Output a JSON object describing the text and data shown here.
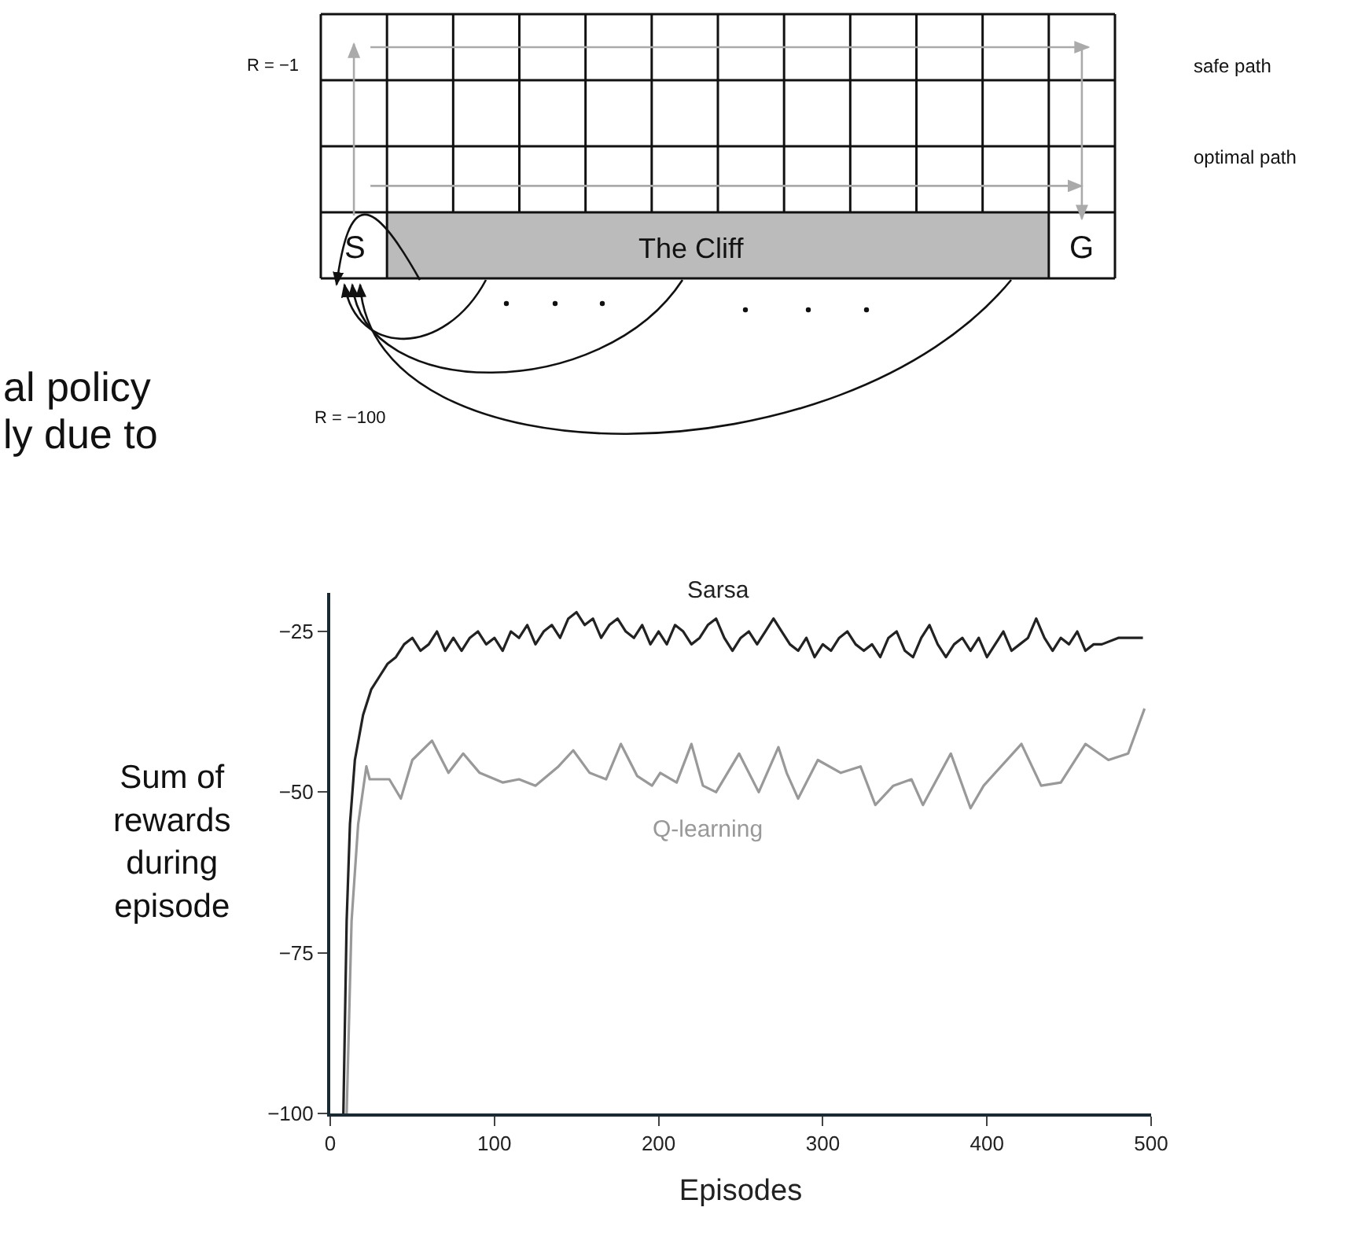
{
  "chart_data": {
    "type": "line",
    "xlabel": "Episodes",
    "ylabel": "Sum of\nrewards\nduring\nepisode",
    "xlim": [
      0,
      500
    ],
    "xticks": [
      0,
      100,
      200,
      300,
      400,
      500
    ],
    "ylim": [
      -100,
      -19
    ],
    "yticks": [
      {
        "value": -100,
        "label": "−100"
      },
      {
        "value": -75,
        "label": "−75"
      },
      {
        "value": -50,
        "label": "−50"
      },
      {
        "value": -25,
        "label": "−25"
      }
    ],
    "grid": false,
    "annotations": [
      "R = −1",
      "safe path",
      "optimal path",
      "S",
      "The Cliff",
      "G",
      "R = −100",
      "al policy",
      "ly due to"
    ],
    "series": [
      {
        "name": "Sarsa",
        "color": "#222222",
        "x": [
          8,
          10,
          12,
          15,
          20,
          25,
          30,
          35,
          40,
          45,
          50,
          55,
          60,
          65,
          70,
          75,
          80,
          85,
          90,
          95,
          100,
          105,
          110,
          115,
          120,
          125,
          130,
          135,
          140,
          145,
          150,
          155,
          160,
          165,
          170,
          175,
          180,
          185,
          190,
          195,
          200,
          205,
          210,
          215,
          220,
          225,
          230,
          235,
          240,
          245,
          250,
          255,
          260,
          265,
          270,
          275,
          280,
          285,
          290,
          295,
          300,
          305,
          310,
          315,
          320,
          325,
          330,
          335,
          340,
          345,
          350,
          355,
          360,
          365,
          370,
          375,
          380,
          385,
          390,
          395,
          400,
          405,
          410,
          415,
          420,
          425,
          430,
          435,
          440,
          445,
          450,
          455,
          460,
          465,
          470,
          480,
          490,
          495
        ],
        "values": [
          -100,
          -70,
          -55,
          -45,
          -38,
          -34,
          -32,
          -30,
          -29,
          -27,
          -26,
          -28,
          -27,
          -25,
          -28,
          -26,
          -28,
          -26,
          -25,
          -27,
          -26,
          -28,
          -25,
          -26,
          -24,
          -27,
          -25,
          -24,
          -26,
          -23,
          -22,
          -24,
          -23,
          -26,
          -24,
          -23,
          -25,
          -26,
          -24,
          -27,
          -25,
          -27,
          -24,
          -25,
          -27,
          -26,
          -24,
          -23,
          -26,
          -28,
          -26,
          -25,
          -27,
          -25,
          -23,
          -25,
          -27,
          -28,
          -26,
          -29,
          -27,
          -28,
          -26,
          -25,
          -27,
          -28,
          -27,
          -29,
          -26,
          -25,
          -28,
          -29,
          -26,
          -24,
          -27,
          -29,
          -27,
          -26,
          -28,
          -26,
          -29,
          -27,
          -25,
          -28,
          -27,
          -26,
          -23,
          -26,
          -28,
          -26,
          -27,
          -25,
          -28,
          -27,
          -27,
          -26,
          -26,
          -26
        ]
      },
      {
        "name": "Q-learning",
        "color": "#999999",
        "x": [
          10,
          13,
          17,
          22,
          24,
          36,
          43,
          50,
          62,
          72,
          81,
          91,
          105,
          115,
          125,
          139,
          148,
          158,
          168,
          177,
          187,
          196,
          201,
          211,
          220,
          227,
          235,
          249,
          261,
          273,
          278,
          285,
          297,
          311,
          323,
          332,
          343,
          354,
          361,
          378,
          390,
          398,
          421,
          433,
          445,
          460,
          474,
          486,
          491,
          496
        ],
        "values": [
          -100,
          -70,
          -55,
          -46,
          -48,
          -48,
          -51,
          -45,
          -42,
          -47,
          -44,
          -47,
          -48.5,
          -48,
          -49,
          -46,
          -43.5,
          -47,
          -48,
          -42.5,
          -47.5,
          -49,
          -47,
          -48.5,
          -42.5,
          -49,
          -50,
          -44,
          -50,
          -43,
          -47,
          -51,
          -45,
          -47,
          -46,
          -52,
          -49,
          -48,
          -52,
          -44,
          -52.5,
          -49,
          -42.5,
          -49,
          -48.5,
          -42.5,
          -45,
          -44,
          -40.5,
          -37
        ]
      }
    ]
  }
}
